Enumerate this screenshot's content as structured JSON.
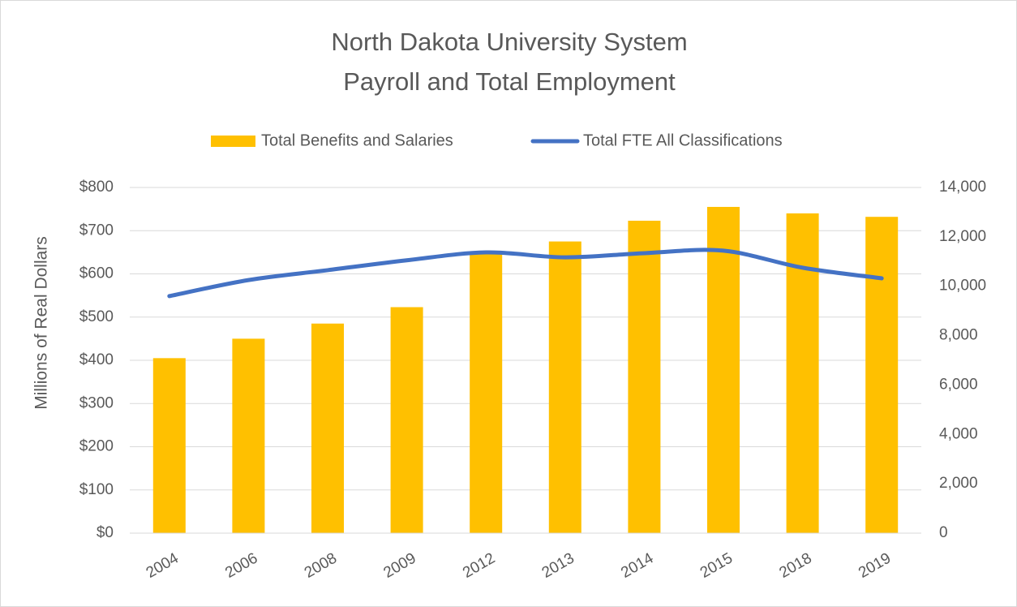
{
  "chart_data": {
    "type": "bar_line",
    "title": "North Dakota University System",
    "subtitle": "Payroll and Total Employment",
    "y_label": "Millions of Real Dollars",
    "categories": [
      "2004",
      "2006",
      "2008",
      "2009",
      "2012",
      "2013",
      "2014",
      "2015",
      "2018",
      "2019"
    ],
    "series": [
      {
        "name": "Total Benefits and Salaries",
        "type": "bar",
        "color": "#ffc000",
        "values": [
          405,
          450,
          485,
          523,
          650,
          675,
          723,
          755,
          740,
          732
        ]
      },
      {
        "name": "Total FTE All Classifications",
        "type": "line",
        "axis": "y2",
        "color": "#4472c4",
        "values": [
          9600,
          10250,
          10650,
          11050,
          11370,
          11170,
          11340,
          11440,
          10750,
          10320
        ]
      }
    ],
    "ylim": [
      0,
      800
    ],
    "yticks": [
      {
        "value": 0,
        "label": "$0"
      },
      {
        "value": 100,
        "label": "$100"
      },
      {
        "value": 200,
        "label": "$200"
      },
      {
        "value": 300,
        "label": "$300"
      },
      {
        "value": 400,
        "label": "$400"
      },
      {
        "value": 500,
        "label": "$500"
      },
      {
        "value": 600,
        "label": "$600"
      },
      {
        "value": 700,
        "label": "$700"
      },
      {
        "value": 800,
        "label": "$800"
      }
    ],
    "y2lim": [
      0,
      14000
    ],
    "y2ticks": [
      0,
      {
        "value": 2000,
        "label": "2,000"
      },
      {
        "value": 4000,
        "label": "4,000"
      },
      {
        "value": 6000,
        "label": "6,000"
      },
      {
        "value": 8000,
        "label": "8,000"
      },
      {
        "value": 10000,
        "label": "10,000"
      },
      {
        "value": 12000,
        "label": "12,000"
      },
      {
        "value": 14000,
        "label": "14,000"
      }
    ],
    "grid": true,
    "legend": "top"
  }
}
